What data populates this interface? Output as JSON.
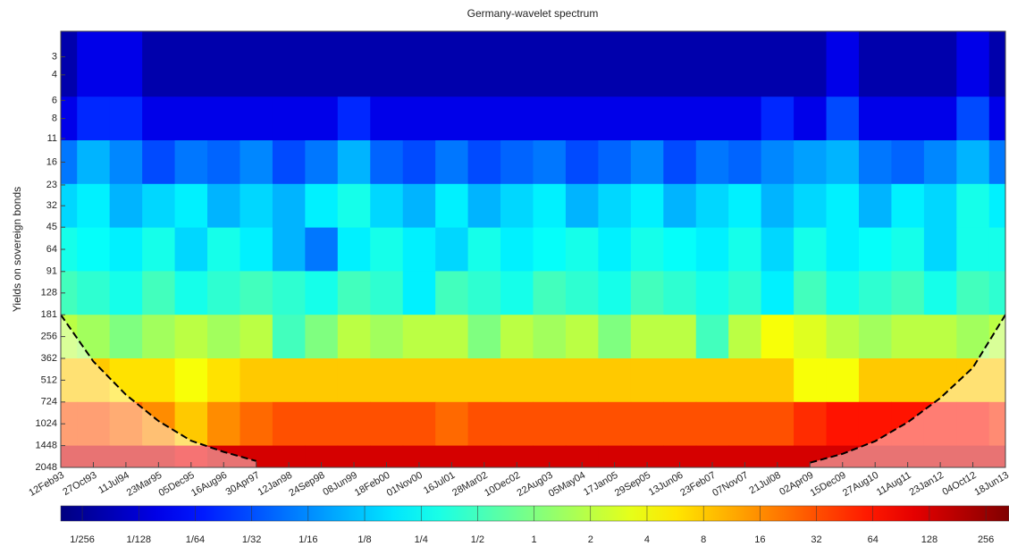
{
  "chart_data": {
    "type": "heatmap",
    "title": "Germany-wavelet spectrum",
    "ylabel": "Yields on sovereign bonds",
    "categories": [
      "12Feb93",
      "27Oct93",
      "11Jul94",
      "23Mar95",
      "05Dec95",
      "16Aug96",
      "30Apr97",
      "12Jan98",
      "24Sep98",
      "08Jun99",
      "18Feb00",
      "01Nov00",
      "16Jul01",
      "28Mar02",
      "10Dec02",
      "22Aug03",
      "05May04",
      "17Jan05",
      "29Sep05",
      "13Jun06",
      "23Feb07",
      "07Nov07",
      "21Jul08",
      "02Apr09",
      "15Dec09",
      "27Aug10",
      "11Aug11",
      "23Jan12",
      "04Oct12",
      "18Jun13"
    ],
    "y": [
      4,
      8,
      16,
      32,
      64,
      128,
      256,
      512,
      1024,
      2048
    ],
    "z": [
      [
        0.005,
        0.01,
        0.01,
        0.005,
        0.005,
        0.005,
        0.005,
        0.005,
        0.005,
        0.005,
        0.005,
        0.005,
        0.005,
        0.005,
        0.005,
        0.005,
        0.005,
        0.005,
        0.005,
        0.005,
        0.005,
        0.005,
        0.005,
        0.005,
        0.01,
        0.005,
        0.005,
        0.005,
        0.01,
        0.005
      ],
      [
        0.01,
        0.02,
        0.02,
        0.01,
        0.01,
        0.01,
        0.01,
        0.01,
        0.01,
        0.02,
        0.01,
        0.01,
        0.01,
        0.01,
        0.01,
        0.01,
        0.01,
        0.01,
        0.01,
        0.01,
        0.01,
        0.01,
        0.02,
        0.01,
        0.03,
        0.01,
        0.01,
        0.01,
        0.03,
        0.01
      ],
      [
        0.05,
        0.1,
        0.06,
        0.03,
        0.05,
        0.04,
        0.06,
        0.03,
        0.05,
        0.1,
        0.04,
        0.03,
        0.05,
        0.03,
        0.04,
        0.05,
        0.03,
        0.04,
        0.06,
        0.03,
        0.05,
        0.04,
        0.06,
        0.08,
        0.1,
        0.05,
        0.04,
        0.06,
        0.1,
        0.05
      ],
      [
        0.15,
        0.2,
        0.1,
        0.15,
        0.2,
        0.1,
        0.15,
        0.1,
        0.2,
        0.3,
        0.15,
        0.1,
        0.2,
        0.1,
        0.15,
        0.2,
        0.1,
        0.15,
        0.2,
        0.1,
        0.15,
        0.2,
        0.1,
        0.15,
        0.2,
        0.1,
        0.2,
        0.15,
        0.3,
        0.2
      ],
      [
        0.3,
        0.25,
        0.2,
        0.3,
        0.15,
        0.3,
        0.2,
        0.1,
        0.05,
        0.2,
        0.3,
        0.2,
        0.15,
        0.3,
        0.2,
        0.25,
        0.3,
        0.2,
        0.3,
        0.25,
        0.2,
        0.3,
        0.15,
        0.3,
        0.2,
        0.25,
        0.3,
        0.15,
        0.3,
        0.3
      ],
      [
        0.5,
        0.4,
        0.3,
        0.5,
        0.3,
        0.4,
        0.5,
        0.4,
        0.3,
        0.5,
        0.4,
        0.2,
        0.5,
        0.4,
        0.3,
        0.5,
        0.4,
        0.3,
        0.5,
        0.4,
        0.3,
        0.4,
        0.2,
        0.5,
        0.3,
        0.4,
        0.5,
        0.3,
        0.5,
        0.4
      ],
      [
        2,
        1.5,
        1,
        1.5,
        2,
        1.5,
        2,
        0.5,
        1,
        2,
        1.5,
        2,
        2,
        1,
        2,
        1.5,
        2,
        1,
        2,
        2,
        0.5,
        2,
        4,
        3,
        2,
        1.5,
        2,
        2,
        1.5,
        2
      ],
      [
        8,
        8,
        6,
        6,
        4,
        6,
        8,
        8,
        8,
        8,
        8,
        8,
        8,
        8,
        8,
        8,
        8,
        8,
        8,
        8,
        8,
        8,
        8,
        4,
        4,
        8,
        8,
        8,
        8,
        8
      ],
      [
        32,
        32,
        24,
        16,
        8,
        16,
        24,
        32,
        32,
        32,
        32,
        32,
        24,
        32,
        32,
        32,
        32,
        32,
        32,
        32,
        32,
        32,
        32,
        48,
        64,
        64,
        64,
        64,
        64,
        48
      ],
      [
        128,
        128,
        128,
        128,
        96,
        128,
        128,
        128,
        128,
        128,
        128,
        128,
        128,
        128,
        128,
        128,
        128,
        128,
        128,
        128,
        128,
        128,
        128,
        128,
        128,
        128,
        128,
        128,
        128,
        128
      ]
    ],
    "coi": [
      181,
      380,
      645,
      980,
      1340,
      1600,
      1850,
      null,
      null,
      null,
      null,
      null,
      null,
      null,
      null,
      null,
      null,
      null,
      null,
      null,
      null,
      null,
      null,
      1900,
      1650,
      1350,
      1000,
      680,
      420,
      181
    ],
    "ylim": [
      2,
      2048
    ],
    "ylog": true,
    "yticks": [
      3,
      4,
      6,
      8,
      11,
      16,
      23,
      32,
      45,
      64,
      91,
      128,
      181,
      256,
      362,
      512,
      724,
      1024,
      1448,
      2048
    ],
    "colorbar": {
      "colormap": "jet",
      "zlim": [
        0.003,
        340
      ],
      "ticks": [
        {
          "value": 0.00390625,
          "label": "1/256"
        },
        {
          "value": 0.0078125,
          "label": "1/128"
        },
        {
          "value": 0.015625,
          "label": "1/64"
        },
        {
          "value": 0.03125,
          "label": "1/32"
        },
        {
          "value": 0.0625,
          "label": "1/16"
        },
        {
          "value": 0.125,
          "label": "1/8"
        },
        {
          "value": 0.25,
          "label": "1/4"
        },
        {
          "value": 0.5,
          "label": "1/2"
        },
        1,
        2,
        4,
        8,
        16,
        32,
        64,
        128,
        256
      ]
    }
  }
}
